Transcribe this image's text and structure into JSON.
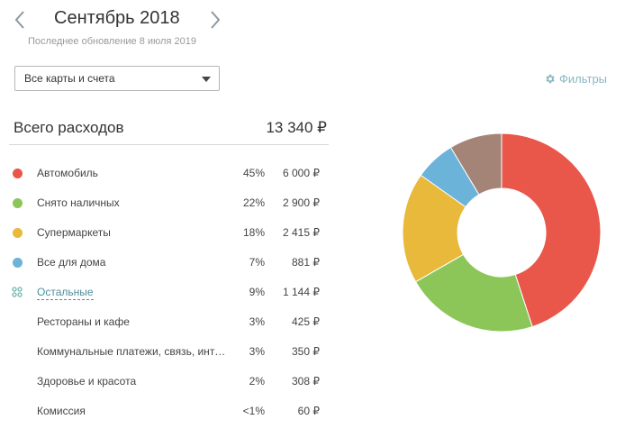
{
  "header": {
    "month": "Сентябрь 2018",
    "last_update": "Последнее обновление 8 июля 2019"
  },
  "account_select": {
    "value": "Все карты и счета"
  },
  "filters": {
    "label": "Фильтры"
  },
  "total": {
    "label": "Всего расходов",
    "value": "13 340 ₽"
  },
  "categories": [
    {
      "name": "Автомобиль",
      "percent": "45%",
      "amount": "6 000 ₽",
      "color": "#e9574b"
    },
    {
      "name": "Снято наличных",
      "percent": "22%",
      "amount": "2 900 ₽",
      "color": "#8cc659"
    },
    {
      "name": "Супермаркеты",
      "percent": "18%",
      "amount": "2 415 ₽",
      "color": "#e8b93a"
    },
    {
      "name": "Все для дома",
      "percent": "7%",
      "amount": "881 ₽",
      "color": "#6cb3d9"
    },
    {
      "name": "Остальные",
      "percent": "9%",
      "amount": "1 144 ₽",
      "color": "#a58478"
    }
  ],
  "others_breakdown": [
    {
      "name": "Рестораны и кафе",
      "percent": "3%",
      "amount": "425 ₽"
    },
    {
      "name": "Коммунальные платежи, связь, инт…",
      "percent": "3%",
      "amount": "350 ₽"
    },
    {
      "name": "Здоровье и красота",
      "percent": "2%",
      "amount": "308 ₽"
    },
    {
      "name": "Комиссия",
      "percent": "<1%",
      "amount": "60 ₽"
    }
  ],
  "chart_data": {
    "type": "pie",
    "style": "donut",
    "categories": [
      "Автомобиль",
      "Снято наличных",
      "Супермаркеты",
      "Все для дома",
      "Остальные"
    ],
    "values": [
      6000,
      2900,
      2415,
      881,
      1144
    ],
    "colors": [
      "#e9574b",
      "#8cc659",
      "#e8b93a",
      "#6cb3d9",
      "#a58478"
    ]
  }
}
